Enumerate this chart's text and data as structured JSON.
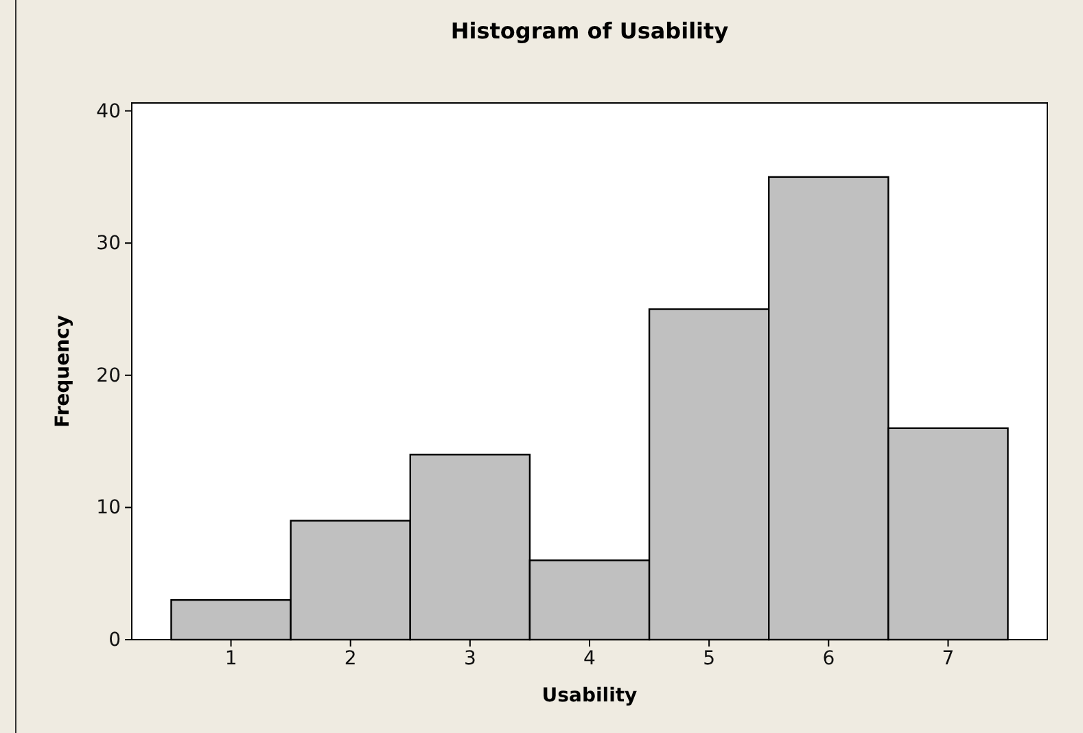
{
  "chart_data": {
    "type": "histogram",
    "title": "Histogram of Usability",
    "xlabel": "Usability",
    "ylabel": "Frequency",
    "bins": [
      0.5,
      1.5,
      2.5,
      3.5,
      4.5,
      5.5,
      6.5,
      7.5
    ],
    "values": [
      3,
      9,
      14,
      6,
      25,
      35,
      16
    ],
    "color": "#c0c0c0",
    "xlim": [
      0.17,
      7.83
    ],
    "xticks": [
      1,
      2,
      3,
      4,
      5,
      6,
      7
    ],
    "ylim": [
      0,
      40.6
    ],
    "yticks": [
      0,
      10,
      20,
      30,
      40
    ],
    "grid": false
  }
}
